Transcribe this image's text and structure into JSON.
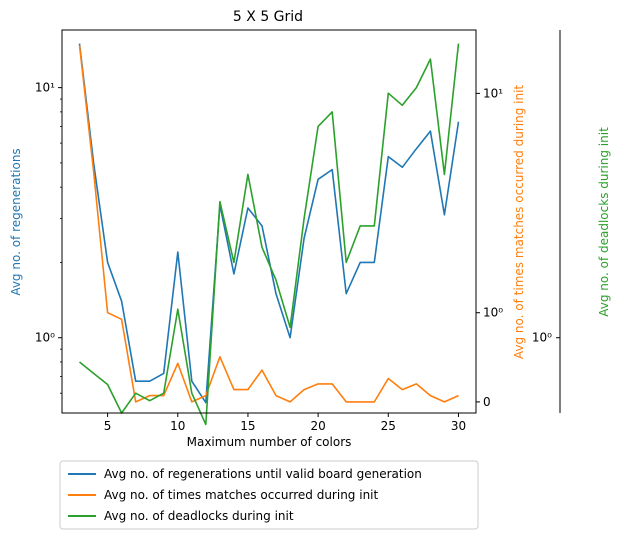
{
  "chart_data": {
    "type": "line",
    "title": "5 X 5 Grid",
    "xlabel": "Maximum number of colors",
    "x": [
      3,
      4,
      5,
      6,
      7,
      8,
      9,
      10,
      11,
      12,
      13,
      14,
      15,
      16,
      17,
      18,
      19,
      20,
      21,
      22,
      23,
      24,
      25,
      26,
      27,
      28,
      29,
      30
    ],
    "xlim": [
      1.75,
      31.25
    ],
    "x_ticks": [
      5,
      10,
      15,
      20,
      25,
      30
    ],
    "grid": false,
    "legend_position": "below plot, left",
    "axes": [
      {
        "id": "regen",
        "side": "left",
        "label": "Avg no. of regenerations",
        "scale": "log",
        "ylim": [
          0.5,
          17
        ],
        "ticks": [
          {
            "value": 1,
            "label": "10⁰"
          },
          {
            "value": 10,
            "label": "10¹"
          }
        ],
        "minor_ticks": [
          0.6,
          0.7,
          0.8,
          0.9,
          2,
          3,
          4,
          5,
          6,
          7,
          8,
          9
        ],
        "color": "#1f77b4"
      },
      {
        "id": "matches",
        "side": "right",
        "label": "Avg no. of times matches occurred during init",
        "scale": "symlog",
        "ylim": [
          -0.09,
          17
        ],
        "ticks": [
          {
            "value": 0,
            "label": "0"
          },
          {
            "value": 1,
            "label": "10⁰"
          },
          {
            "value": 10,
            "label": "10¹"
          }
        ],
        "color": "#ff7f0e"
      },
      {
        "id": "deadlocks",
        "side": "right-outer",
        "label": "Avg no. of deadlocks during init",
        "scale": "log",
        "ylim": [
          0.5,
          17
        ],
        "ticks": [
          {
            "value": 1,
            "label": "10⁰"
          }
        ],
        "color": "#2ca02c"
      }
    ],
    "series": [
      {
        "name": "Avg no. of regenerations until valid board generation",
        "axis": "regen",
        "color": "#1f77b4",
        "values": [
          15.0,
          5.0,
          2.0,
          1.4,
          0.67,
          0.67,
          0.72,
          2.2,
          0.67,
          0.55,
          3.4,
          1.8,
          3.3,
          2.8,
          1.5,
          1.0,
          2.5,
          4.3,
          4.7,
          1.5,
          2.0,
          2.0,
          5.3,
          4.8,
          5.7,
          6.7,
          3.1,
          7.3
        ]
      },
      {
        "name": "Avg no. of times matches occurred during init",
        "axis": "matches",
        "color": "#ff7f0e",
        "values": [
          15.0,
          5.0,
          1.0,
          0.9,
          0.0,
          0.05,
          0.05,
          0.35,
          0.0,
          0.05,
          0.42,
          0.1,
          0.1,
          0.28,
          0.05,
          0.0,
          0.1,
          0.15,
          0.15,
          0.0,
          0.0,
          0.0,
          0.2,
          0.1,
          0.15,
          0.05,
          0.0,
          0.05
        ]
      },
      {
        "name": "Avg no. of deadlocks during init",
        "axis": "deadlocks",
        "color": "#2ca02c",
        "values": [
          0.8,
          0.72,
          0.65,
          0.5,
          0.6,
          0.56,
          0.6,
          1.3,
          0.6,
          0.45,
          3.5,
          2.0,
          4.5,
          2.3,
          1.7,
          1.1,
          3.0,
          7.0,
          8.0,
          2.0,
          2.8,
          2.8,
          9.5,
          8.5,
          10.0,
          13.0,
          4.5,
          15.0
        ]
      }
    ]
  }
}
